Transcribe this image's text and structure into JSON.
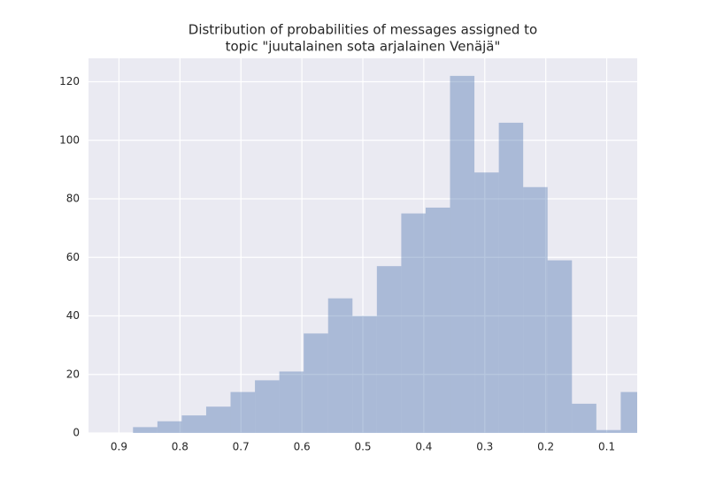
{
  "chart_data": {
    "type": "histogram",
    "title": [
      "Distribution of probabilities of messages assigned to",
      "topic \"juutalainen sota arjalainen Venäjä\""
    ],
    "bins": [
      0.877,
      0.837,
      0.797,
      0.757,
      0.717,
      0.677,
      0.637,
      0.597,
      0.557,
      0.517,
      0.477,
      0.437,
      0.397,
      0.357,
      0.317,
      0.277,
      0.237,
      0.197,
      0.157,
      0.117,
      0.077,
      0.037
    ],
    "values": [
      2,
      4,
      6,
      9,
      14,
      18,
      21,
      34,
      46,
      40,
      57,
      75,
      77,
      122,
      89,
      106,
      84,
      59,
      10,
      1,
      14
    ],
    "color": "#4c72b0",
    "xlim": [
      0.95,
      0.05
    ],
    "xticks": [
      0.9,
      0.8,
      0.7,
      0.6,
      0.5,
      0.4,
      0.3,
      0.2,
      0.1
    ],
    "ylim": [
      0,
      128
    ],
    "yticks": [
      0,
      20,
      40,
      60,
      80,
      100,
      120
    ],
    "grid": true
  }
}
